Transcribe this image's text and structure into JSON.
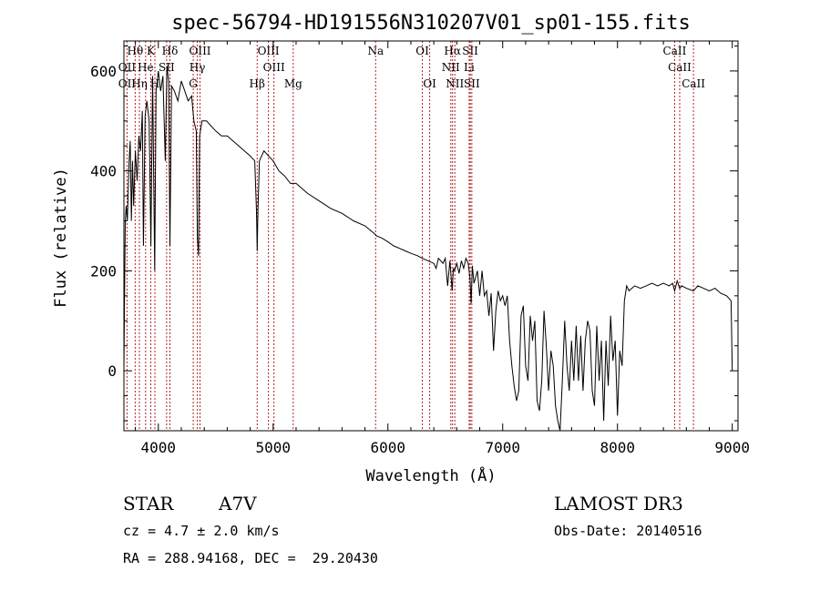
{
  "chart_data": {
    "type": "line",
    "title": "spec-56794-HD191556N310207V01_sp01-155.fits",
    "xlabel": "Wavelength (Å)",
    "ylabel": "Flux (relative)",
    "xlim": [
      3700,
      9050
    ],
    "ylim": [
      -120,
      660
    ],
    "xticks": [
      4000,
      5000,
      6000,
      7000,
      8000,
      9000
    ],
    "xtick_labels": [
      "4000",
      "5000",
      "6000",
      "7000",
      "8000",
      "9000"
    ],
    "yticks": [
      0,
      200,
      400,
      600
    ],
    "ytick_labels": [
      "0",
      "200",
      "400",
      "600"
    ],
    "grid": false,
    "spectrum_points": [
      [
        3700,
        0
      ],
      [
        3705,
        130
      ],
      [
        3712,
        300
      ],
      [
        3720,
        330
      ],
      [
        3730,
        300
      ],
      [
        3745,
        420
      ],
      [
        3755,
        460
      ],
      [
        3765,
        300
      ],
      [
        3775,
        420
      ],
      [
        3785,
        330
      ],
      [
        3800,
        440
      ],
      [
        3815,
        380
      ],
      [
        3830,
        470
      ],
      [
        3845,
        440
      ],
      [
        3860,
        520
      ],
      [
        3870,
        250
      ],
      [
        3885,
        510
      ],
      [
        3900,
        540
      ],
      [
        3920,
        500
      ],
      [
        3935,
        250
      ],
      [
        3950,
        590
      ],
      [
        3968,
        200
      ],
      [
        3980,
        560
      ],
      [
        4000,
        600
      ],
      [
        4020,
        560
      ],
      [
        4040,
        590
      ],
      [
        4060,
        420
      ],
      [
        4075,
        610
      ],
      [
        4090,
        580
      ],
      [
        4101,
        250
      ],
      [
        4115,
        570
      ],
      [
        4140,
        560
      ],
      [
        4170,
        540
      ],
      [
        4200,
        580
      ],
      [
        4230,
        560
      ],
      [
        4260,
        540
      ],
      [
        4290,
        550
      ],
      [
        4310,
        500
      ],
      [
        4330,
        480
      ],
      [
        4340,
        270
      ],
      [
        4350,
        230
      ],
      [
        4360,
        470
      ],
      [
        4380,
        500
      ],
      [
        4420,
        500
      ],
      [
        4460,
        490
      ],
      [
        4500,
        480
      ],
      [
        4550,
        470
      ],
      [
        4600,
        470
      ],
      [
        4650,
        460
      ],
      [
        4700,
        450
      ],
      [
        4750,
        440
      ],
      [
        4800,
        430
      ],
      [
        4840,
        420
      ],
      [
        4855,
        320
      ],
      [
        4861,
        240
      ],
      [
        4868,
        320
      ],
      [
        4880,
        420
      ],
      [
        4920,
        440
      ],
      [
        4960,
        430
      ],
      [
        5000,
        420
      ],
      [
        5050,
        400
      ],
      [
        5100,
        390
      ],
      [
        5150,
        375
      ],
      [
        5200,
        375
      ],
      [
        5300,
        355
      ],
      [
        5400,
        340
      ],
      [
        5500,
        325
      ],
      [
        5600,
        315
      ],
      [
        5700,
        300
      ],
      [
        5800,
        290
      ],
      [
        5880,
        275
      ],
      [
        5900,
        270
      ],
      [
        5950,
        265
      ],
      [
        6000,
        258
      ],
      [
        6050,
        250
      ],
      [
        6100,
        245
      ],
      [
        6150,
        240
      ],
      [
        6200,
        235
      ],
      [
        6260,
        230
      ],
      [
        6300,
        225
      ],
      [
        6350,
        220
      ],
      [
        6400,
        215
      ],
      [
        6420,
        205
      ],
      [
        6440,
        225
      ],
      [
        6480,
        215
      ],
      [
        6500,
        225
      ],
      [
        6520,
        170
      ],
      [
        6540,
        220
      ],
      [
        6560,
        160
      ],
      [
        6570,
        205
      ],
      [
        6580,
        200
      ],
      [
        6600,
        215
      ],
      [
        6620,
        195
      ],
      [
        6640,
        220
      ],
      [
        6660,
        205
      ],
      [
        6680,
        225
      ],
      [
        6700,
        215
      ],
      [
        6715,
        185
      ],
      [
        6725,
        135
      ],
      [
        6735,
        210
      ],
      [
        6750,
        175
      ],
      [
        6780,
        200
      ],
      [
        6800,
        150
      ],
      [
        6820,
        200
      ],
      [
        6840,
        150
      ],
      [
        6860,
        160
      ],
      [
        6880,
        110
      ],
      [
        6900,
        155
      ],
      [
        6920,
        40
      ],
      [
        6940,
        120
      ],
      [
        6960,
        160
      ],
      [
        6980,
        140
      ],
      [
        7000,
        150
      ],
      [
        7020,
        130
      ],
      [
        7040,
        150
      ],
      [
        7060,
        60
      ],
      [
        7080,
        10
      ],
      [
        7100,
        -30
      ],
      [
        7120,
        -60
      ],
      [
        7140,
        -40
      ],
      [
        7160,
        110
      ],
      [
        7180,
        130
      ],
      [
        7200,
        10
      ],
      [
        7220,
        -20
      ],
      [
        7240,
        110
      ],
      [
        7260,
        60
      ],
      [
        7280,
        100
      ],
      [
        7300,
        -60
      ],
      [
        7320,
        -80
      ],
      [
        7340,
        -20
      ],
      [
        7360,
        120
      ],
      [
        7380,
        50
      ],
      [
        7400,
        -40
      ],
      [
        7420,
        40
      ],
      [
        7440,
        10
      ],
      [
        7460,
        -70
      ],
      [
        7480,
        -100
      ],
      [
        7500,
        -120
      ],
      [
        7520,
        -20
      ],
      [
        7540,
        100
      ],
      [
        7560,
        10
      ],
      [
        7580,
        -40
      ],
      [
        7600,
        60
      ],
      [
        7620,
        -20
      ],
      [
        7640,
        90
      ],
      [
        7660,
        -20
      ],
      [
        7680,
        70
      ],
      [
        7700,
        -40
      ],
      [
        7720,
        60
      ],
      [
        7740,
        100
      ],
      [
        7760,
        80
      ],
      [
        7780,
        -40
      ],
      [
        7800,
        -70
      ],
      [
        7820,
        90
      ],
      [
        7840,
        -20
      ],
      [
        7860,
        60
      ],
      [
        7880,
        -100
      ],
      [
        7900,
        60
      ],
      [
        7920,
        -30
      ],
      [
        7940,
        110
      ],
      [
        7960,
        20
      ],
      [
        7980,
        60
      ],
      [
        8000,
        -90
      ],
      [
        8020,
        40
      ],
      [
        8040,
        10
      ],
      [
        8060,
        140
      ],
      [
        8080,
        170
      ],
      [
        8100,
        160
      ],
      [
        8150,
        170
      ],
      [
        8200,
        165
      ],
      [
        8250,
        170
      ],
      [
        8300,
        175
      ],
      [
        8350,
        170
      ],
      [
        8400,
        175
      ],
      [
        8450,
        170
      ],
      [
        8480,
        175
      ],
      [
        8498,
        160
      ],
      [
        8520,
        180
      ],
      [
        8542,
        165
      ],
      [
        8560,
        170
      ],
      [
        8600,
        165
      ],
      [
        8662,
        160
      ],
      [
        8700,
        170
      ],
      [
        8750,
        165
      ],
      [
        8800,
        160
      ],
      [
        8850,
        165
      ],
      [
        8900,
        155
      ],
      [
        8950,
        150
      ],
      [
        8990,
        140
      ],
      [
        9000,
        0
      ]
    ],
    "lines_top": [
      {
        "label": "Hθ",
        "wl": 3798
      },
      {
        "label": "K",
        "wl": 3934
      },
      {
        "label": "Hδ",
        "wl": 4101
      },
      {
        "label": "OIII",
        "wl": 4363
      },
      {
        "label": "OIII",
        "wl": 4959
      },
      {
        "label": "Na",
        "wl": 5893
      },
      {
        "label": "OI",
        "wl": 6300
      },
      {
        "label": "Hα",
        "wl": 6563
      },
      {
        "label": "SII",
        "wl": 6717
      },
      {
        "label": "CaII",
        "wl": 8498
      }
    ],
    "lines_mid": [
      {
        "label": "OII",
        "wl": 3727
      },
      {
        "label": "He",
        "wl": 3889
      },
      {
        "label": "SII",
        "wl": 4072
      },
      {
        "label": "Hγ",
        "wl": 4340
      },
      {
        "label": "OIII",
        "wl": 5007
      },
      {
        "label": "NII",
        "wl": 6548
      },
      {
        "label": "Li",
        "wl": 6708
      },
      {
        "label": "CaII",
        "wl": 8542
      }
    ],
    "lines_bot": [
      {
        "label": "OII",
        "wl": 3727
      },
      {
        "label": "Hη",
        "wl": 3835
      },
      {
        "label": "H",
        "wl": 3970
      },
      {
        "label": "G",
        "wl": 4304
      },
      {
        "label": "Hβ",
        "wl": 4861
      },
      {
        "label": "Mg",
        "wl": 5175
      },
      {
        "label": "OI",
        "wl": 6364
      },
      {
        "label": "NII",
        "wl": 6583
      },
      {
        "label": "SII",
        "wl": 6731
      },
      {
        "label": "CaII",
        "wl": 8662
      }
    ]
  },
  "info": {
    "object_class": "STAR",
    "subclass": "A7V",
    "survey": "LAMOST DR3",
    "cz": "cz = 4.7 ± 2.0 km/s",
    "obs_date": "Obs-Date: 20140516",
    "coords": "RA = 288.94168, DEC =  29.20430"
  },
  "colors": {
    "axis": "#000000",
    "spectrum": "#000000",
    "line_marker": "#b22222"
  }
}
